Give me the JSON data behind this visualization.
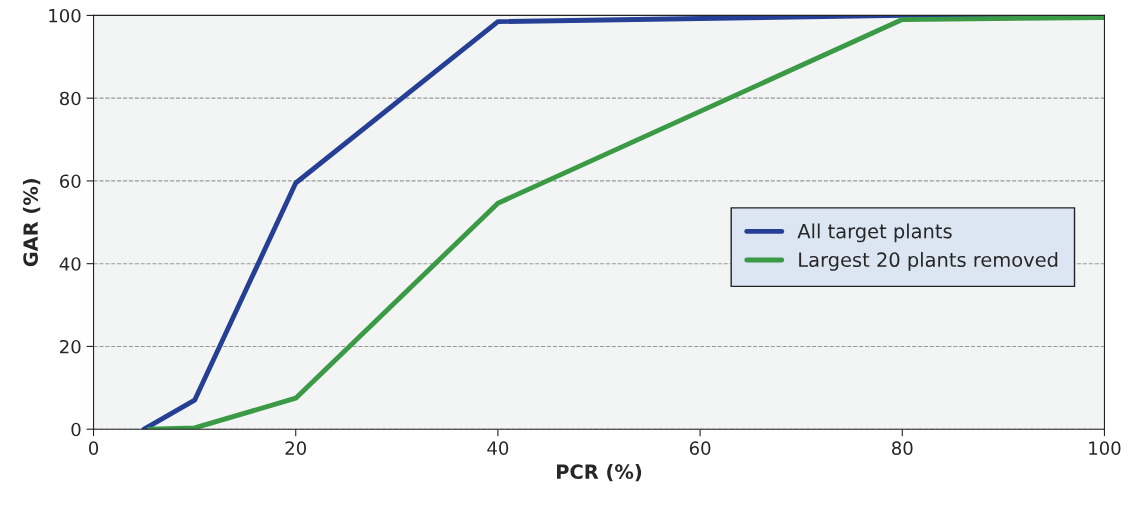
{
  "chart_data": {
    "type": "line",
    "xlabel": "PCR (%)",
    "ylabel": "GAR (%)",
    "xlim": [
      0,
      100
    ],
    "xticks": [
      0,
      20,
      40,
      60,
      80,
      100
    ],
    "ylim": [
      0,
      100
    ],
    "yticks": [
      0,
      20,
      40,
      60,
      80,
      100
    ],
    "grid": "y",
    "legend": "right",
    "marker": "none",
    "line_style": "solid",
    "series": [
      {
        "name": "All target plants",
        "color": "#253f94",
        "x": [
          5,
          10,
          20,
          40,
          80,
          100
        ],
        "values": [
          0,
          7,
          59.5,
          98.5,
          100,
          100
        ]
      },
      {
        "name": "Largest 20 plants removed",
        "color": "#3a9a45",
        "x": [
          5.5,
          10,
          20,
          40,
          80,
          100
        ],
        "values": [
          0,
          0.3,
          7.5,
          54.6,
          99,
          99.5
        ]
      }
    ]
  }
}
